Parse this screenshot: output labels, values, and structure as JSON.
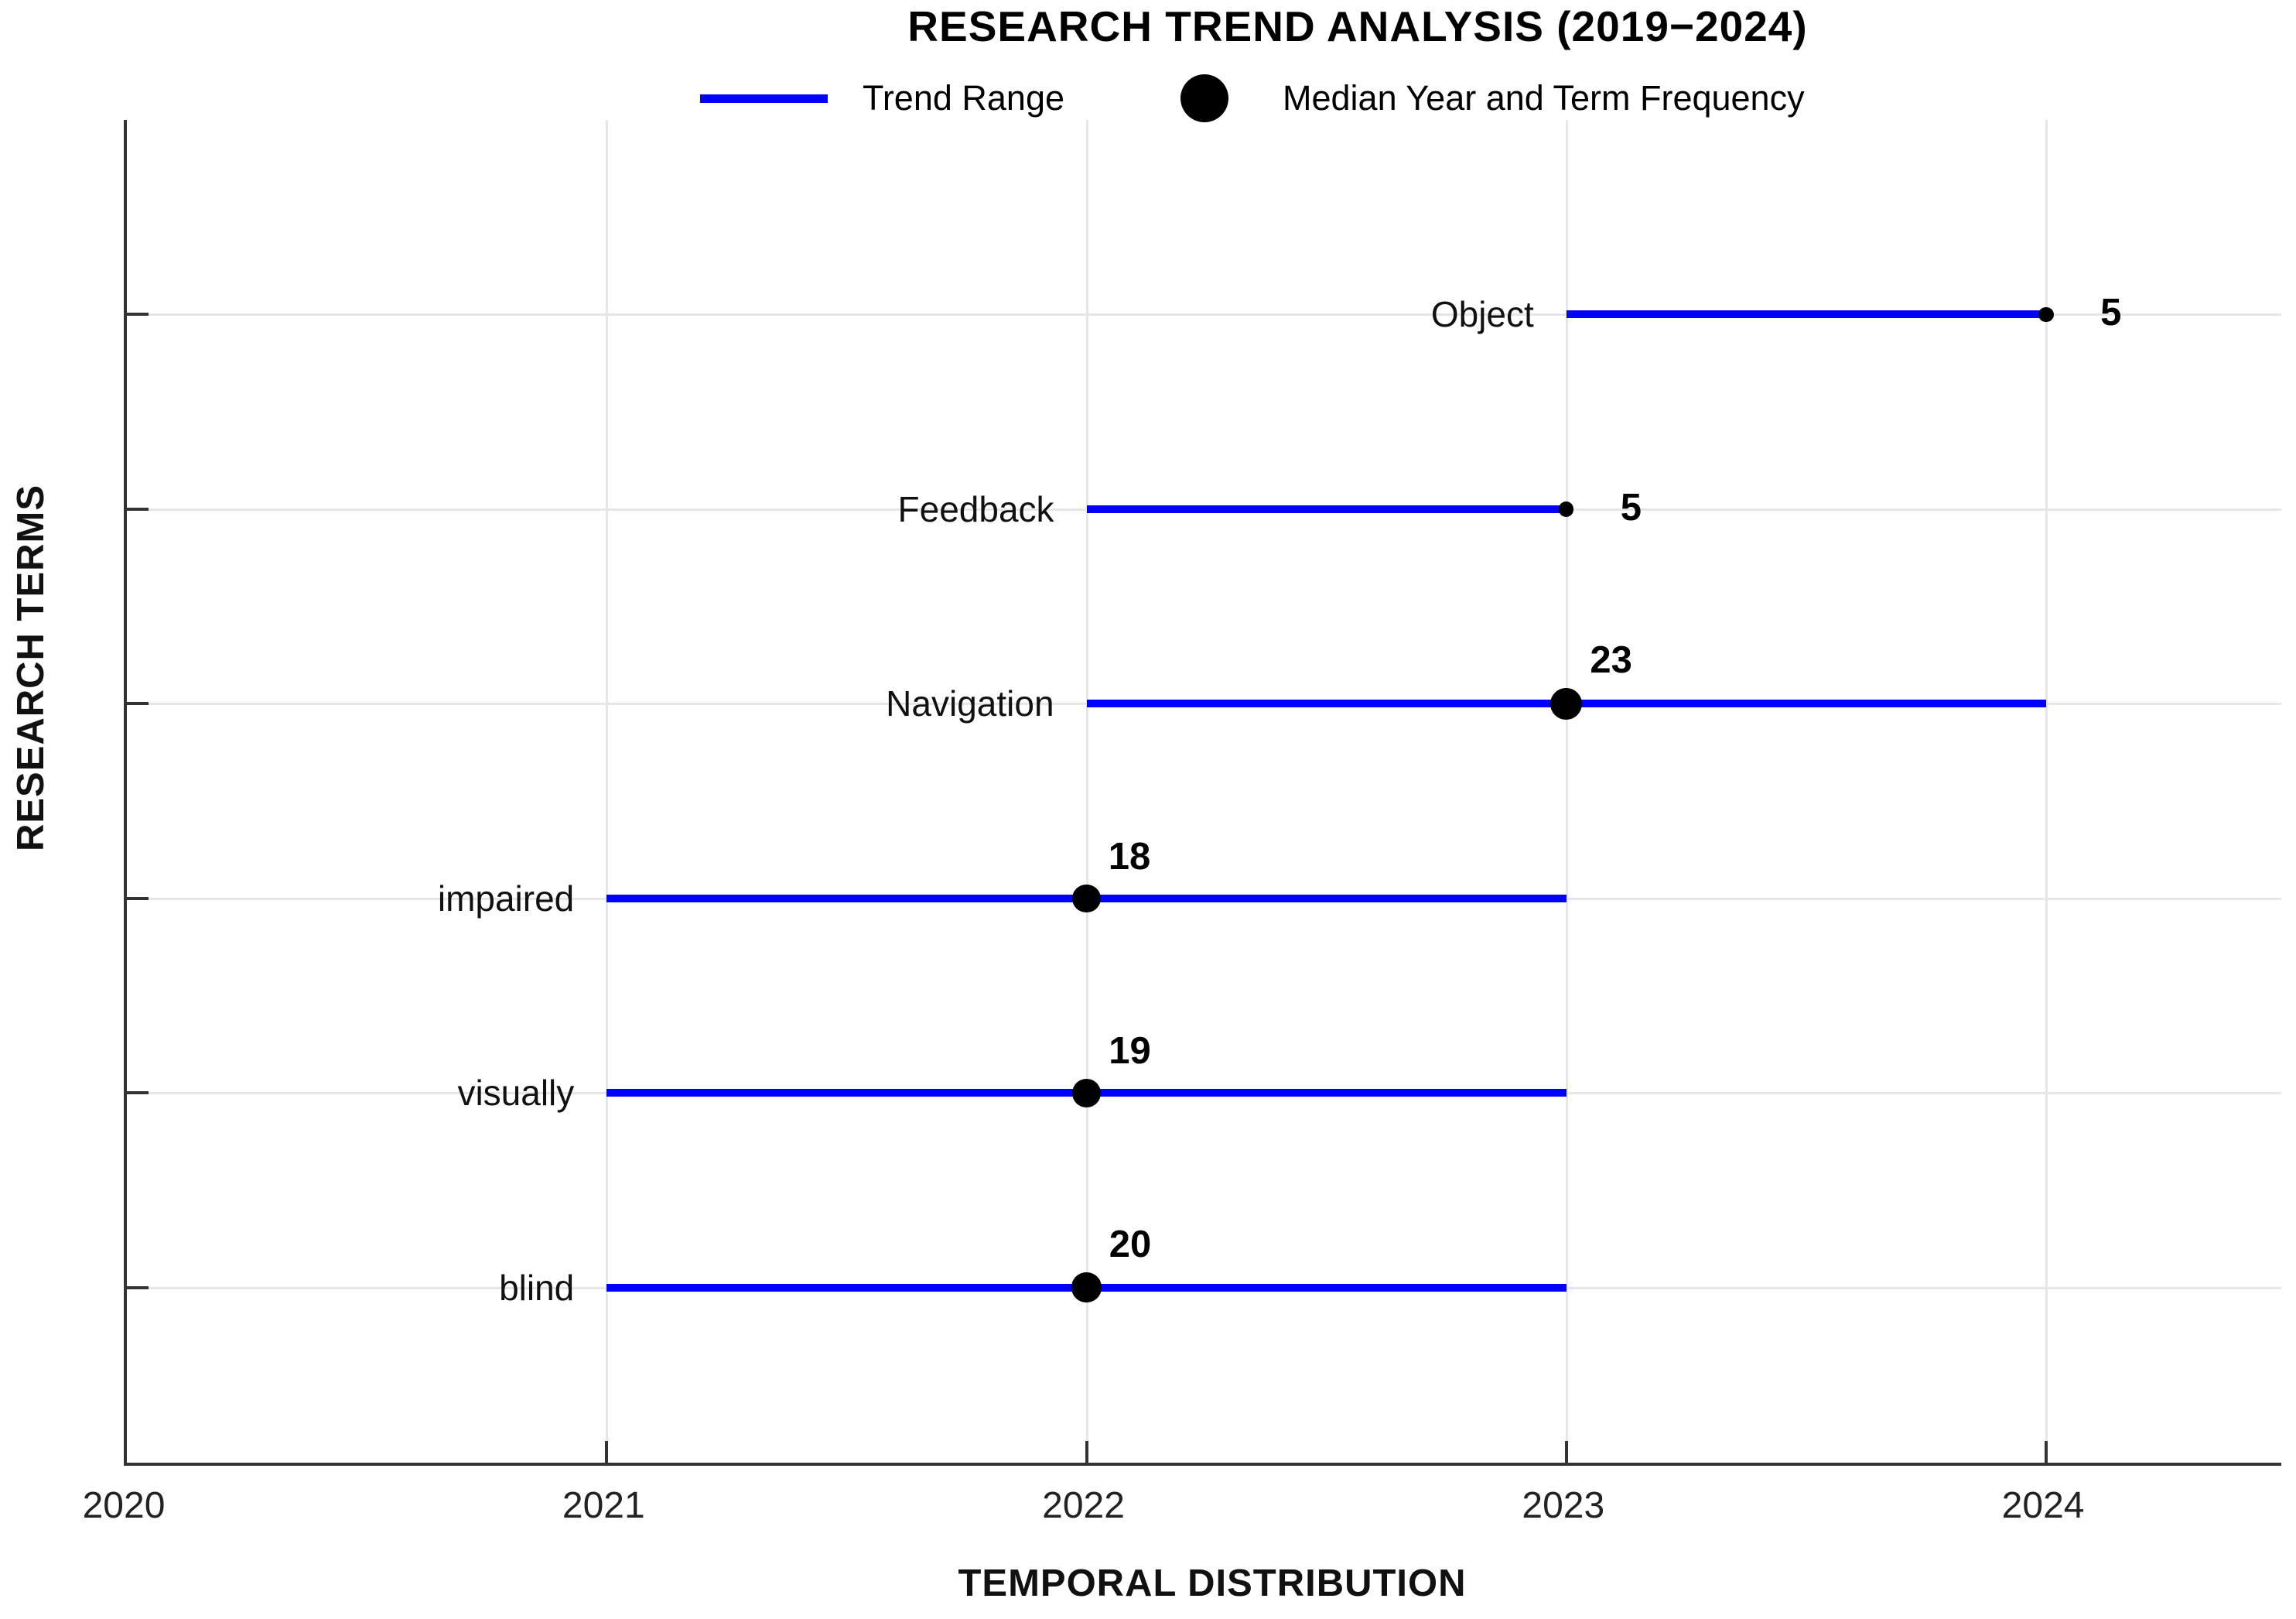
{
  "chart_data": {
    "type": "dumbbell-range",
    "title": "RESEARCH TREND ANALYSIS (2019−2024)",
    "xlabel": "TEMPORAL DISTRIBUTION",
    "ylabel": "RESEARCH TERMS",
    "legend": {
      "position": "top",
      "range_label": "Trend Range",
      "median_label": "Median Year and Term Frequency"
    },
    "x_ticks": [
      "2020",
      "2021",
      "2022",
      "2023",
      "2024"
    ],
    "xlim": [
      2020,
      2024.49
    ],
    "grid": true,
    "rows": [
      {
        "term": "Object",
        "range_start": 2023,
        "range_end": 2024,
        "median_year": 2024,
        "frequency": 5
      },
      {
        "term": "Feedback",
        "range_start": 2022,
        "range_end": 2023,
        "median_year": 2023,
        "frequency": 5
      },
      {
        "term": "Navigation",
        "range_start": 2022,
        "range_end": 2024,
        "median_year": 2023,
        "frequency": 23
      },
      {
        "term": "impaired",
        "range_start": 2021,
        "range_end": 2023,
        "median_year": 2022,
        "frequency": 18
      },
      {
        "term": "visually",
        "range_start": 2021,
        "range_end": 2023,
        "median_year": 2022,
        "frequency": 19
      },
      {
        "term": "blind",
        "range_start": 2021,
        "range_end": 2023,
        "median_year": 2022,
        "frequency": 20
      }
    ],
    "colors": {
      "range_line": "#0000ff",
      "median_dot": "#000000",
      "gridline": "#e6e6e6",
      "axis": "#333333",
      "tick_text": "#222222",
      "label_text": "#111111"
    }
  }
}
